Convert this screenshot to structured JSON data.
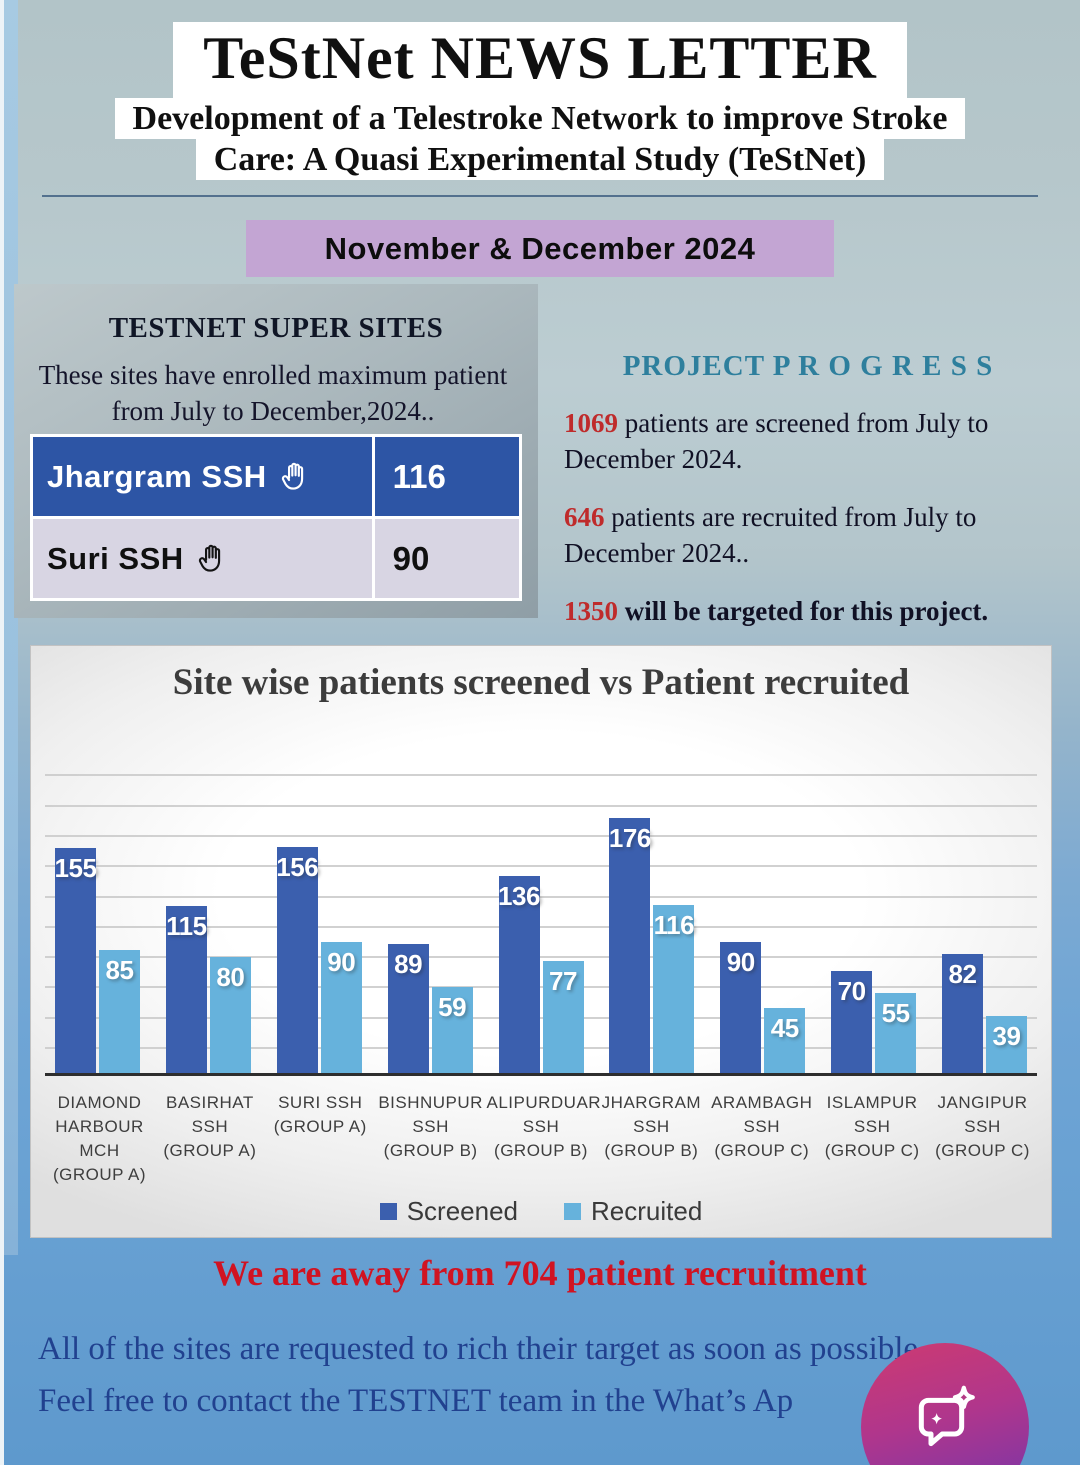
{
  "header": {
    "title": "TeStNet NEWS LETTER",
    "subtitle_line1": "Development of a Telestroke Network to improve Stroke",
    "subtitle_line2": "Care: A Quasi Experimental Study (TeStNet)",
    "period_banner": "November & December 2024"
  },
  "super_sites": {
    "heading": "TESTNET SUPER SITES",
    "description": "These sites have enrolled maximum patient from July to December,2024..",
    "rows": [
      {
        "site": "Jhargram SSH",
        "count": "116"
      },
      {
        "site": "Suri SSH",
        "count": "90"
      }
    ]
  },
  "project_progress": {
    "heading": "PROJECT P R O G R E S S",
    "items": [
      {
        "number": "1069",
        "text": " patients are screened from July to December 2024."
      },
      {
        "number": "646",
        "text": " patients are recruited from July to December 2024.."
      },
      {
        "number": "1350",
        "text": " will be targeted for this project."
      }
    ]
  },
  "chart_data": {
    "type": "bar",
    "title": "Site wise patients screened vs Patient recruited",
    "categories": [
      "DIAMOND HARBOUR MCH (GROUP A)",
      "BASIRHAT SSH (GROUP A)",
      "SURI SSH (GROUP A)",
      "BISHNUPUR SSH (GROUP B)",
      "ALIPURDUAR SSH (GROUP B)",
      "JHARGRAM SSH (GROUP B)",
      "ARAMBAGH SSH (GROUP C)",
      "ISLAMPUR SSH (GROUP C)",
      "JANGIPUR SSH (GROUP C)"
    ],
    "category_lines": [
      [
        "DIAMOND",
        "HARBOUR",
        "MCH",
        "(GROUP A)"
      ],
      [
        "BASIRHAT",
        "SSH",
        "(GROUP A)"
      ],
      [
        "SURI SSH",
        "(GROUP A)"
      ],
      [
        "BISHNUPUR",
        "SSH",
        "(GROUP B)"
      ],
      [
        "ALIPURDUAR",
        "SSH",
        "(GROUP B)"
      ],
      [
        "JHARGRAM",
        "SSH",
        "(GROUP B)"
      ],
      [
        "ARAMBAGH",
        "SSH",
        "(GROUP C)"
      ],
      [
        "ISLAMPUR",
        "SSH",
        "(GROUP C)"
      ],
      [
        "JANGIPUR",
        "SSH",
        "(GROUP C)"
      ]
    ],
    "series": [
      {
        "name": "Screened",
        "color": "#3b5fae",
        "values": [
          155,
          115,
          156,
          89,
          136,
          176,
          90,
          70,
          82
        ]
      },
      {
        "name": "Recruited",
        "color": "#66b2dc",
        "values": [
          85,
          80,
          90,
          59,
          77,
          116,
          45,
          55,
          39
        ]
      }
    ],
    "xlabel": "",
    "ylabel": "",
    "ylim": [
      0,
      200
    ],
    "grid": true,
    "legend_position": "bottom",
    "value_labels": true
  },
  "footer": {
    "away_line": "We are away from 704 patient recruitment",
    "note_line1": "All of the sites are requested to rich their target as soon as possible.",
    "note_line2": "Feel free to contact the TESTNET team in the What’s Ap"
  },
  "colors": {
    "screened_blue": "#3b5fae",
    "recruited_blue": "#66b2dc",
    "table_row_blue": "#2d55a5",
    "table_row_lavender": "#d8d5e3",
    "banner_purple": "#c3a5d3",
    "progress_teal": "#2e7f9d",
    "highlight_red": "#bf2b2b",
    "footer_red": "#d01322",
    "footer_navy": "#21418f",
    "fab_pink": "#ca3a74",
    "fab_purple": "#7c35a6"
  }
}
